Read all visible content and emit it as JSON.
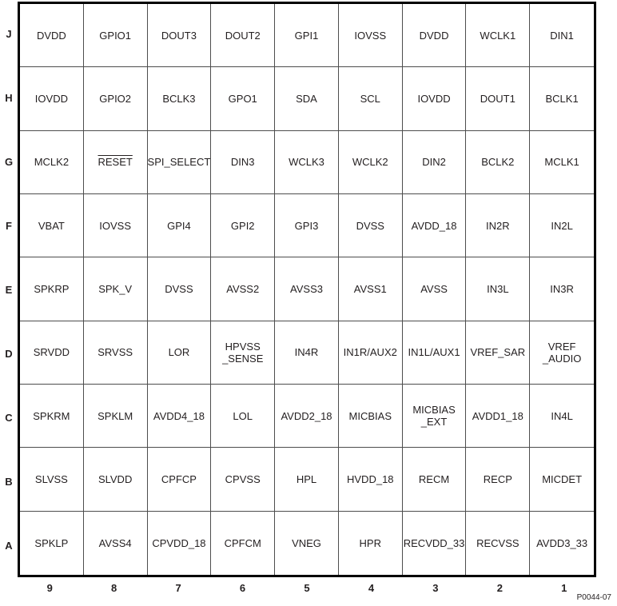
{
  "figure": {
    "type": "bga-ball-map",
    "code": "P0044-07",
    "colors": {
      "outer_border": "#000000",
      "grid_line": "#4d4d4d",
      "text": "#231f20",
      "background": "#ffffff"
    }
  },
  "grid": {
    "row_labels": [
      "J",
      "H",
      "G",
      "F",
      "E",
      "D",
      "C",
      "B",
      "A"
    ],
    "col_labels": [
      "9",
      "8",
      "7",
      "6",
      "5",
      "4",
      "3",
      "2",
      "1"
    ],
    "overline_pins": [
      "RESET"
    ],
    "cells": [
      [
        "DVDD",
        "GPIO1",
        "DOUT3",
        "DOUT2",
        "GPI1",
        "IOVSS",
        "DVDD",
        "WCLK1",
        "DIN1"
      ],
      [
        "IOVDD",
        "GPIO2",
        "BCLK3",
        "GPO1",
        "SDA",
        "SCL",
        "IOVDD",
        "DOUT1",
        "BCLK1"
      ],
      [
        "MCLK2",
        "RESET",
        "SPI_SELECT",
        "DIN3",
        "WCLK3",
        "WCLK2",
        "DIN2",
        "BCLK2",
        "MCLK1"
      ],
      [
        "VBAT",
        "IOVSS",
        "GPI4",
        "GPI2",
        "GPI3",
        "DVSS",
        "AVDD_18",
        "IN2R",
        "IN2L"
      ],
      [
        "SPKRP",
        "SPK_V",
        "DVSS",
        "AVSS2",
        "AVSS3",
        "AVSS1",
        "AVSS",
        "IN3L",
        "IN3R"
      ],
      [
        "SRVDD",
        "SRVSS",
        "LOR",
        "HPVSS\n_SENSE",
        "IN4R",
        "IN1R/AUX2",
        "IN1L/AUX1",
        "VREF_SAR",
        "VREF\n_AUDIO"
      ],
      [
        "SPKRM",
        "SPKLM",
        "AVDD4_18",
        "LOL",
        "AVDD2_18",
        "MICBIAS",
        "MICBIAS\n_EXT",
        "AVDD1_18",
        "IN4L"
      ],
      [
        "SLVSS",
        "SLVDD",
        "CPFCP",
        "CPVSS",
        "HPL",
        "HVDD_18",
        "RECM",
        "RECP",
        "MICDET"
      ],
      [
        "SPKLP",
        "AVSS4",
        "CPVDD_18",
        "CPFCM",
        "VNEG",
        "HPR",
        "RECVDD_33",
        "RECVSS",
        "AVDD3_33"
      ]
    ]
  }
}
